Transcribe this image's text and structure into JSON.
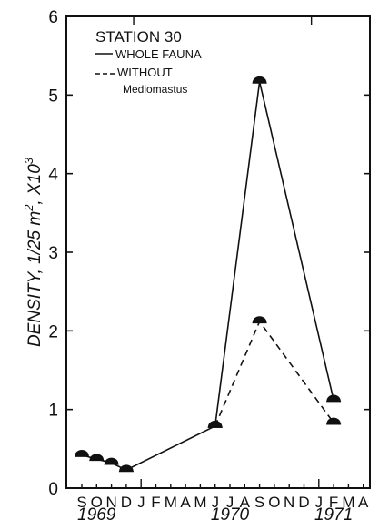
{
  "chart_data": {
    "type": "line",
    "legend_title": "STATION 30",
    "ylabel": "DENSITY, 1/25 m², X10³",
    "ylabel_parts": {
      "main": "DENSITY, 1/25 m",
      "sup1": "2",
      "mid": ", X10",
      "sup2": "3"
    },
    "ylim": [
      0,
      6
    ],
    "yticks": [
      "0",
      "1",
      "2",
      "3",
      "4",
      "5",
      "6"
    ],
    "x_months": [
      "S",
      "O",
      "N",
      "D",
      "J",
      "F",
      "M",
      "A",
      "M",
      "J",
      "J",
      "A",
      "S",
      "O",
      "N",
      "D",
      "J",
      "F",
      "M",
      "A"
    ],
    "years": [
      {
        "label": "1969",
        "month_index": 1
      },
      {
        "label": "1970",
        "month_index": 10
      },
      {
        "label": "1971",
        "month_index": 17
      }
    ],
    "grid": false,
    "legend_position": "top-left",
    "series": [
      {
        "name": "WHOLE FAUNA",
        "style": "solid",
        "points": [
          {
            "x": "Sep 1969",
            "y": 0.42
          },
          {
            "x": "Oct 1969",
            "y": 0.37
          },
          {
            "x": "Nov 1969",
            "y": 0.32
          },
          {
            "x": "Dec 1969",
            "y": 0.23
          },
          {
            "x": "Jun 1970",
            "y": 0.79
          },
          {
            "x": "Sep 1970",
            "y": 5.17
          },
          {
            "x": "Feb 1971",
            "y": 1.12
          }
        ]
      },
      {
        "name": "WITHOUT Mediomastus",
        "name_parts": [
          "WITHOUT",
          "Mediomastus"
        ],
        "style": "dashed",
        "points": [
          {
            "x": "Jun 1970",
            "y": 0.79
          },
          {
            "x": "Sep 1970",
            "y": 2.12
          },
          {
            "x": "Feb 1971",
            "y": 0.83
          }
        ]
      }
    ]
  }
}
